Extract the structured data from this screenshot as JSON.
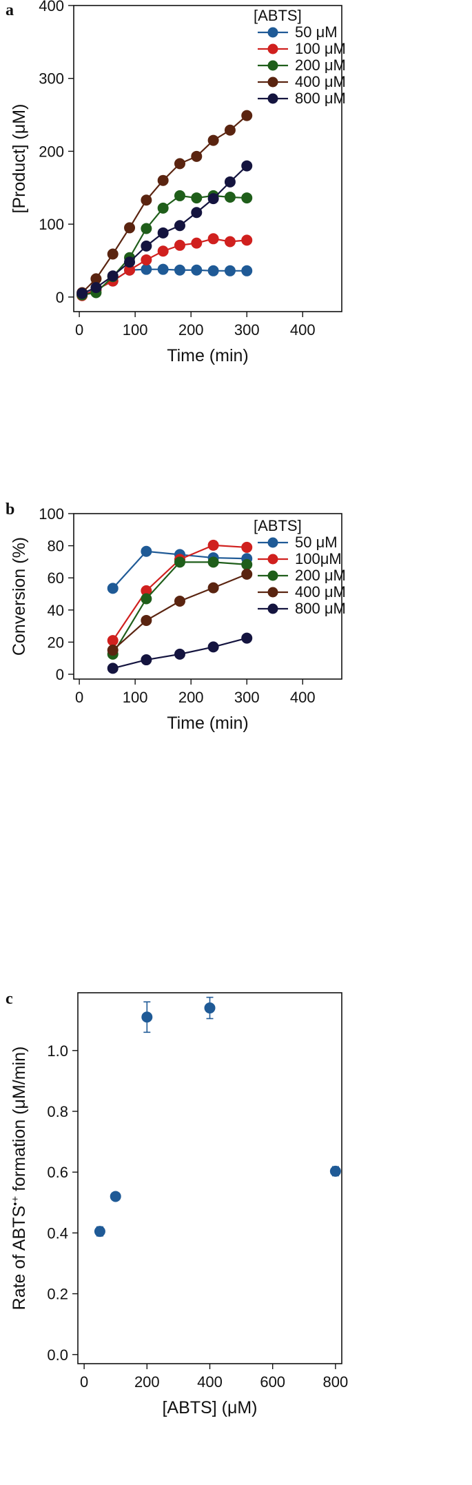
{
  "chart_data": [
    {
      "panel_label": "a",
      "type": "line",
      "xlabel": "Time (min)",
      "ylabel": "[Product] (μM)",
      "xlim": [
        -10,
        470
      ],
      "ylim": [
        -20,
        400
      ],
      "xticks": [
        0,
        100,
        200,
        300,
        400
      ],
      "yticks": [
        0,
        100,
        200,
        300,
        400
      ],
      "grid": false,
      "legend_placement": "top-right",
      "legend_title": "[ABTS]",
      "x": [
        5,
        30,
        60,
        90,
        120,
        150,
        180,
        210,
        240,
        270,
        300
      ],
      "series": [
        {
          "name": "50 μM",
          "color": "#1f5a96",
          "values": [
            3,
            10,
            22,
            37,
            38,
            38,
            37,
            37,
            36,
            36,
            36
          ]
        },
        {
          "name": "100 μM",
          "color": "#d0201e",
          "values": [
            2,
            10,
            22,
            37,
            51,
            63,
            71,
            74,
            80,
            76,
            78
          ]
        },
        {
          "name": "200 μM",
          "color": "#1f5e1a",
          "values": [
            3,
            6,
            28,
            54,
            94,
            122,
            139,
            136,
            139,
            137,
            136
          ]
        },
        {
          "name": "400 μM",
          "color": "#5a2410",
          "values": [
            6,
            25,
            59,
            95,
            133,
            160,
            183,
            193,
            215,
            229,
            249
          ]
        },
        {
          "name": "800 μM",
          "color": "#14143f",
          "values": [
            5,
            13,
            29,
            48,
            70,
            88,
            98,
            116,
            135,
            158,
            180
          ]
        }
      ]
    },
    {
      "panel_label": "b",
      "type": "line",
      "xlabel": "Time (min)",
      "ylabel": "Conversion (%)",
      "xlim": [
        -10,
        470
      ],
      "ylim": [
        -3,
        100
      ],
      "xticks": [
        0,
        100,
        200,
        300,
        400
      ],
      "yticks": [
        0,
        20,
        40,
        60,
        80,
        100
      ],
      "grid": false,
      "legend_placement": "top-right",
      "legend_title": "[ABTS]",
      "x": [
        60,
        120,
        180,
        240,
        300
      ],
      "series": [
        {
          "name": "50 μM",
          "color": "#1f5a96",
          "values": [
            53.5,
            76.5,
            74.5,
            72.5,
            72
          ],
          "errors": [
            1.5,
            0.8,
            1.2,
            0.8,
            0.8
          ]
        },
        {
          "name": "100μM",
          "color": "#d0201e",
          "values": [
            21,
            52,
            71.5,
            80.3,
            79
          ],
          "errors": [
            0.5,
            0.5,
            1.5,
            2.5,
            0.5
          ]
        },
        {
          "name": "200 μM",
          "color": "#1f5e1a",
          "values": [
            12.5,
            47,
            69.8,
            69.8,
            68.3
          ],
          "errors": [
            0.3,
            0.5,
            0.5,
            0.5,
            0.5
          ]
        },
        {
          "name": "400 μM",
          "color": "#5a2410",
          "values": [
            15,
            33.5,
            45.5,
            53.8,
            62.3
          ],
          "errors": [
            0,
            0,
            0,
            0,
            0
          ]
        },
        {
          "name": "800 μM",
          "color": "#14143f",
          "values": [
            3.7,
            9,
            12.5,
            17,
            22.5
          ],
          "errors": [
            0,
            0,
            0,
            0,
            0
          ]
        }
      ]
    },
    {
      "panel_label": "c",
      "type": "scatter",
      "xlabel": "[ABTS] (μM)",
      "ylabel_main": "Rate of ABTS",
      "ylabel_super": "•+",
      "ylabel_tail": " formation (μM/min)",
      "xlim": [
        -20,
        820
      ],
      "ylim": [
        -0.03,
        1.19
      ],
      "xticks": [
        0,
        200,
        400,
        600,
        800
      ],
      "yticks": [
        0.0,
        0.2,
        0.4,
        0.6,
        0.8,
        1.0
      ],
      "ytick_labels": [
        "0.0",
        "0.2",
        "0.4",
        "0.6",
        "0.8",
        "1.0"
      ],
      "grid": false,
      "series": [
        {
          "name": "",
          "color": "#1f5a96",
          "x": [
            50,
            100,
            200,
            400,
            800
          ],
          "values": [
            0.405,
            0.52,
            1.11,
            1.14,
            0.603
          ],
          "errors": [
            0.015,
            0.01,
            0.05,
            0.035,
            0.015
          ]
        }
      ]
    }
  ]
}
